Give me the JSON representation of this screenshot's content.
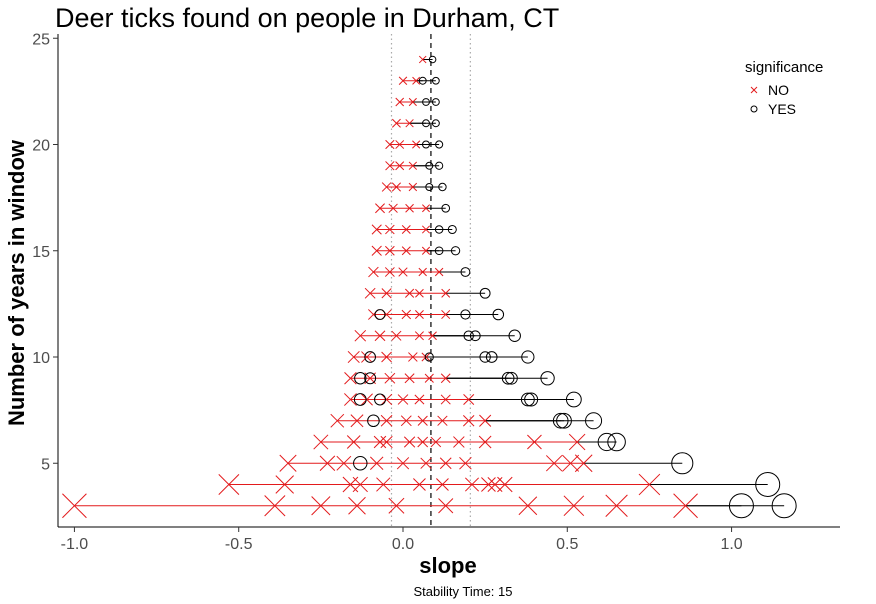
{
  "chart_data": {
    "type": "scatter",
    "title": "Deer ticks found on people in Durham, CT",
    "xlabel": "slope",
    "ylabel": "Number of years in window",
    "caption": "Stability Time: 15",
    "xlim": [
      -1.05,
      1.33
    ],
    "ylim": [
      2.0,
      25.2
    ],
    "xticks": [
      -1.0,
      -0.5,
      0.0,
      0.5,
      1.0
    ],
    "xtick_labels": [
      "-1.0",
      "-0.5",
      "0.0",
      "0.5",
      "1.0"
    ],
    "yticks": [
      5,
      10,
      15,
      20,
      25
    ],
    "ytick_labels": [
      "5",
      "10",
      "15",
      "20",
      "25"
    ],
    "grid": false,
    "reference_lines": [
      {
        "style": "dashed",
        "x": 0.085
      },
      {
        "style": "dotted",
        "x": -0.035
      },
      {
        "style": "dotted",
        "x": 0.205
      }
    ],
    "legend": {
      "title": "significance",
      "position": "top-right",
      "entries": [
        {
          "label": "NO",
          "marker": "x",
          "color": "#e31a1c"
        },
        {
          "label": "YES",
          "marker": "circle",
          "color": "#000000"
        }
      ]
    },
    "rows": [
      {
        "n": 3,
        "no": [
          -1.0,
          -0.39,
          -0.25,
          -0.14,
          -0.02,
          0.13,
          0.38,
          0.52,
          0.65,
          0.86
        ],
        "yes": [
          1.03,
          1.16
        ]
      },
      {
        "n": 4,
        "no": [
          -0.53,
          -0.36,
          -0.16,
          -0.13,
          -0.06,
          0.05,
          0.12,
          0.21,
          0.26,
          0.28,
          0.31,
          0.75
        ],
        "yes": [
          1.11
        ]
      },
      {
        "n": 5,
        "no": [
          -0.35,
          -0.23,
          -0.18,
          -0.08,
          0.0,
          0.07,
          0.13,
          0.19,
          0.46,
          0.51,
          0.55
        ],
        "yes": [
          -0.13,
          0.85
        ]
      },
      {
        "n": 6,
        "no": [
          -0.25,
          -0.15,
          -0.07,
          -0.05,
          0.02,
          0.06,
          0.1,
          0.17,
          0.25,
          0.4,
          0.53
        ],
        "yes": [
          0.62,
          0.65
        ]
      },
      {
        "n": 7,
        "no": [
          -0.2,
          -0.14,
          -0.05,
          0.01,
          0.06,
          0.12,
          0.2,
          0.25
        ],
        "yes": [
          -0.09,
          0.48,
          0.49,
          0.58
        ]
      },
      {
        "n": 8,
        "no": [
          -0.16,
          -0.11,
          -0.05,
          0.0,
          0.05,
          0.13,
          0.2
        ],
        "yes": [
          -0.13,
          -0.07,
          0.38,
          0.39,
          0.52
        ]
      },
      {
        "n": 9,
        "no": [
          -0.16,
          -0.1,
          -0.04,
          0.02,
          0.08,
          0.13
        ],
        "yes": [
          -0.13,
          -0.1,
          0.32,
          0.33,
          0.44
        ]
      },
      {
        "n": 10,
        "no": [
          -0.15,
          -0.11,
          -0.05,
          0.03,
          0.07
        ],
        "yes": [
          -0.1,
          0.08,
          0.25,
          0.27,
          0.38
        ]
      },
      {
        "n": 11,
        "no": [
          -0.13,
          -0.07,
          -0.02,
          0.05,
          0.09
        ],
        "yes": [
          0.2,
          0.22,
          0.34
        ]
      },
      {
        "n": 12,
        "no": [
          -0.09,
          -0.05,
          0.01,
          0.05,
          0.13
        ],
        "yes": [
          -0.07,
          0.19,
          0.29
        ]
      },
      {
        "n": 13,
        "no": [
          -0.1,
          -0.05,
          0.02,
          0.05,
          0.13
        ],
        "yes": [
          0.25
        ]
      },
      {
        "n": 14,
        "no": [
          -0.09,
          -0.04,
          0.0,
          0.06,
          0.11
        ],
        "yes": [
          0.19
        ]
      },
      {
        "n": 15,
        "no": [
          -0.08,
          -0.04,
          0.01,
          0.07
        ],
        "yes": [
          0.11,
          0.16
        ]
      },
      {
        "n": 16,
        "no": [
          -0.08,
          -0.04,
          0.01,
          0.07
        ],
        "yes": [
          0.11,
          0.15
        ]
      },
      {
        "n": 17,
        "no": [
          -0.07,
          -0.03,
          0.02,
          0.07
        ],
        "yes": [
          0.13
        ]
      },
      {
        "n": 18,
        "no": [
          -0.05,
          -0.02,
          0.03
        ],
        "yes": [
          0.08,
          0.12
        ]
      },
      {
        "n": 19,
        "no": [
          -0.04,
          -0.01,
          0.03
        ],
        "yes": [
          0.08,
          0.11
        ]
      },
      {
        "n": 20,
        "no": [
          -0.04,
          -0.01,
          0.04
        ],
        "yes": [
          0.07,
          0.11
        ]
      },
      {
        "n": 21,
        "no": [
          -0.02,
          0.02
        ],
        "yes": [
          0.07,
          0.1
        ]
      },
      {
        "n": 22,
        "no": [
          -0.01,
          0.03
        ],
        "yes": [
          0.07,
          0.1
        ]
      },
      {
        "n": 23,
        "no": [
          0.0,
          0.04
        ],
        "yes": [
          0.06,
          0.1
        ]
      },
      {
        "n": 24,
        "no": [
          0.06
        ],
        "yes": [
          0.09
        ]
      }
    ]
  }
}
